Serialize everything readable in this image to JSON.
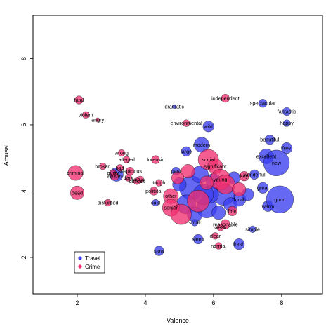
{
  "chart_data": {
    "type": "scatter",
    "title": "",
    "xlabel": "Valence",
    "ylabel": "Arousal",
    "xlim": [
      0.7,
      9.2
    ],
    "ylim": [
      0.9,
      9.3
    ],
    "xticks": [
      2,
      4,
      6,
      8
    ],
    "yticks": [
      2,
      4,
      6,
      8
    ],
    "grid": false,
    "legend_position": "bottom-left",
    "series": [
      {
        "name": "Travel",
        "color": "#3a3ef0",
        "points": [
          {
            "label": "spectacular",
            "x": 7.45,
            "y": 6.65,
            "r": 0.12
          },
          {
            "label": "fantastic",
            "x": 8.15,
            "y": 6.4,
            "r": 0.12
          },
          {
            "label": "happy",
            "x": 8.15,
            "y": 6.05,
            "r": 0.1
          },
          {
            "label": "wild",
            "x": 5.85,
            "y": 5.95,
            "r": 0.16
          },
          {
            "label": "modern",
            "x": 5.65,
            "y": 5.4,
            "r": 0.22
          },
          {
            "label": "beautiful",
            "x": 7.65,
            "y": 5.55,
            "r": 0.14
          },
          {
            "label": "free",
            "x": 8.15,
            "y": 5.3,
            "r": 0.16
          },
          {
            "label": "excellent",
            "x": 7.55,
            "y": 5.05,
            "r": 0.22
          },
          {
            "label": "new",
            "x": 7.85,
            "y": 4.85,
            "r": 0.38
          },
          {
            "label": "wonderful",
            "x": 7.2,
            "y": 4.5,
            "r": 0.14
          },
          {
            "label": "great",
            "x": 7.45,
            "y": 4.1,
            "r": 0.16
          },
          {
            "label": "warm",
            "x": 7.6,
            "y": 3.55,
            "r": 0.16
          },
          {
            "label": "good",
            "x": 7.95,
            "y": 3.75,
            "r": 0.4
          },
          {
            "label": "large",
            "x": 5.2,
            "y": 5.2,
            "r": 0.14
          },
          {
            "label": "past",
            "x": 4.9,
            "y": 4.6,
            "r": 0.12
          },
          {
            "label": "cold",
            "x": 4.3,
            "y": 3.65,
            "r": 0.1
          },
          {
            "label": "dramatic",
            "x": 4.85,
            "y": 6.55,
            "r": 0.06
          },
          {
            "label": "slow",
            "x": 4.4,
            "y": 2.2,
            "r": 0.14
          },
          {
            "label": "sleep",
            "x": 5.55,
            "y": 2.55,
            "r": 0.14
          },
          {
            "label": "small",
            "x": 5.45,
            "y": 3.05,
            "r": 0.1
          },
          {
            "label": "fresh",
            "x": 6.75,
            "y": 2.4,
            "r": 0.16
          },
          {
            "label": "simple",
            "x": 7.15,
            "y": 2.85,
            "r": 0.1
          },
          {
            "label": "local",
            "x": 6.75,
            "y": 3.75,
            "r": 0.2
          },
          {
            "label": "",
            "x": 5.35,
            "y": 4.1,
            "r": 0.35
          },
          {
            "label": "",
            "x": 5.8,
            "y": 3.5,
            "r": 0.3
          },
          {
            "label": "",
            "x": 6.3,
            "y": 3.9,
            "r": 0.32
          },
          {
            "label": "",
            "x": 5.6,
            "y": 4.5,
            "r": 0.25
          },
          {
            "label": "",
            "x": 6.0,
            "y": 4.3,
            "r": 0.22
          },
          {
            "label": "",
            "x": 5.2,
            "y": 3.6,
            "r": 0.28
          },
          {
            "label": "",
            "x": 6.5,
            "y": 3.6,
            "r": 0.2
          },
          {
            "label": "",
            "x": 5.9,
            "y": 3.9,
            "r": 0.25
          },
          {
            "label": "",
            "x": 6.6,
            "y": 4.4,
            "r": 0.18
          },
          {
            "label": "",
            "x": 7.0,
            "y": 3.9,
            "r": 0.18
          },
          {
            "label": "",
            "x": 5.0,
            "y": 4.2,
            "r": 0.2
          },
          {
            "label": "",
            "x": 5.45,
            "y": 3.3,
            "r": 0.22
          },
          {
            "label": "",
            "x": 6.15,
            "y": 3.35,
            "r": 0.2
          },
          {
            "label": "",
            "x": 5.7,
            "y": 3.9,
            "r": 0.3
          },
          {
            "label": "",
            "x": 3.15,
            "y": 4.5,
            "r": 0.2
          }
        ]
      },
      {
        "name": "Crime",
        "color": "#f03070",
        "points": [
          {
            "label": "fatal",
            "x": 2.05,
            "y": 6.75,
            "r": 0.12
          },
          {
            "label": "violent",
            "x": 2.25,
            "y": 6.3,
            "r": 0.1
          },
          {
            "label": "angry",
            "x": 2.6,
            "y": 6.15,
            "r": 0.06
          },
          {
            "label": "criminal",
            "x": 1.95,
            "y": 4.55,
            "r": 0.22
          },
          {
            "label": "dead",
            "x": 2.0,
            "y": 3.95,
            "r": 0.2
          },
          {
            "label": "disturbed",
            "x": 2.9,
            "y": 3.65,
            "r": 0.1
          },
          {
            "label": "wrong",
            "x": 3.3,
            "y": 5.15,
            "r": 0.1
          },
          {
            "label": "alleged",
            "x": 3.45,
            "y": 4.95,
            "r": 0.1
          },
          {
            "label": "broken",
            "x": 2.75,
            "y": 4.75,
            "r": 0.1
          },
          {
            "label": "bad",
            "x": 3.25,
            "y": 4.7,
            "r": 0.1
          },
          {
            "label": "guilty",
            "x": 3.05,
            "y": 4.55,
            "r": 0.1
          },
          {
            "label": "suspicious",
            "x": 3.55,
            "y": 4.6,
            "r": 0.12
          },
          {
            "label": "serious",
            "x": 3.1,
            "y": 4.45,
            "r": 0.12
          },
          {
            "label": "dark",
            "x": 3.5,
            "y": 4.4,
            "r": 0.1
          },
          {
            "label": "cruel",
            "x": 3.85,
            "y": 4.35,
            "r": 0.1
          },
          {
            "label": "difficult",
            "x": 3.75,
            "y": 4.3,
            "r": 0.1
          },
          {
            "label": "forensic",
            "x": 4.3,
            "y": 4.95,
            "r": 0.12
          },
          {
            "label": "tough",
            "x": 4.4,
            "y": 4.25,
            "r": 0.1
          },
          {
            "label": "political",
            "x": 4.25,
            "y": 4.0,
            "r": 0.12
          },
          {
            "label": "other",
            "x": 4.75,
            "y": 3.85,
            "r": 0.22
          },
          {
            "label": "senior",
            "x": 4.75,
            "y": 3.5,
            "r": 0.25
          },
          {
            "label": "environmental",
            "x": 5.2,
            "y": 6.05,
            "r": 0.1
          },
          {
            "label": "independent",
            "x": 6.35,
            "y": 6.8,
            "r": 0.12
          },
          {
            "label": "social",
            "x": 5.85,
            "y": 4.95,
            "r": 0.3
          },
          {
            "label": "significant",
            "x": 6.05,
            "y": 4.75,
            "r": 0.22
          },
          {
            "label": "young",
            "x": 6.2,
            "y": 4.35,
            "r": 0.3
          },
          {
            "label": "key",
            "x": 6.9,
            "y": 4.45,
            "r": 0.14
          },
          {
            "label": "reasonable",
            "x": 6.35,
            "y": 3.0,
            "r": 0.14
          },
          {
            "label": "weak",
            "x": 6.2,
            "y": 2.9,
            "r": 0.1
          },
          {
            "label": "clear",
            "x": 6.05,
            "y": 2.65,
            "r": 0.1
          },
          {
            "label": "normal",
            "x": 6.15,
            "y": 2.35,
            "r": 0.1
          },
          {
            "label": "fine",
            "x": 6.55,
            "y": 3.4,
            "r": 0.14
          },
          {
            "label": "",
            "x": 5.05,
            "y": 3.3,
            "r": 0.3
          },
          {
            "label": "",
            "x": 5.55,
            "y": 3.7,
            "r": 0.32
          },
          {
            "label": "",
            "x": 6.35,
            "y": 4.2,
            "r": 0.28
          },
          {
            "label": "",
            "x": 5.25,
            "y": 4.6,
            "r": 0.2
          },
          {
            "label": "",
            "x": 6.75,
            "y": 4.05,
            "r": 0.2
          },
          {
            "label": "",
            "x": 4.95,
            "y": 4.4,
            "r": 0.18
          },
          {
            "label": "",
            "x": 5.8,
            "y": 4.25,
            "r": 0.2
          }
        ]
      }
    ]
  }
}
